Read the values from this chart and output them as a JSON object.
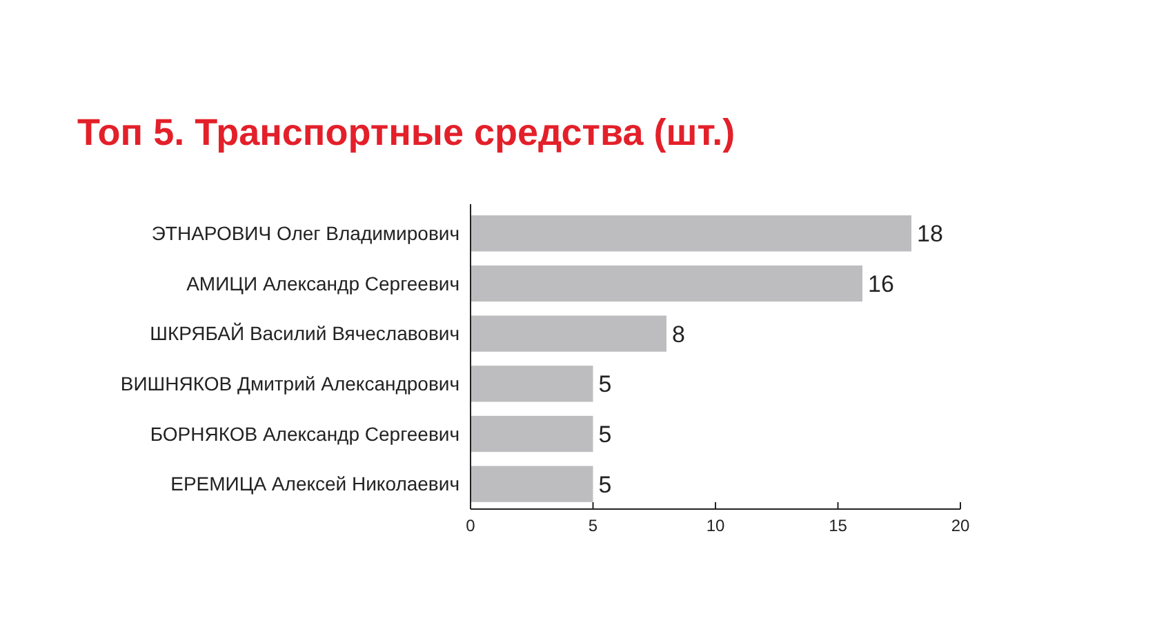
{
  "chart_data": {
    "type": "bar",
    "orientation": "horizontal",
    "title": "Топ 5. Транспортные средства (шт.)",
    "categories": [
      "ЭТНАРОВИЧ Олег Владимирович",
      "АМИЦИ Александр Сергеевич",
      "ШКРЯБАЙ Василий Вячеславович",
      "ВИШНЯКОВ Дмитрий Александрович",
      "БОРНЯКОВ Александр Сергеевич",
      "ЕРЕМИЦА Алексей Николаевич"
    ],
    "values": [
      18,
      16,
      8,
      5,
      5,
      5
    ],
    "color": "#bdbdbf",
    "data_labels": true,
    "xlim": [
      0,
      20
    ],
    "xticks": [
      0,
      5,
      10,
      15,
      20
    ],
    "grid": false
  }
}
